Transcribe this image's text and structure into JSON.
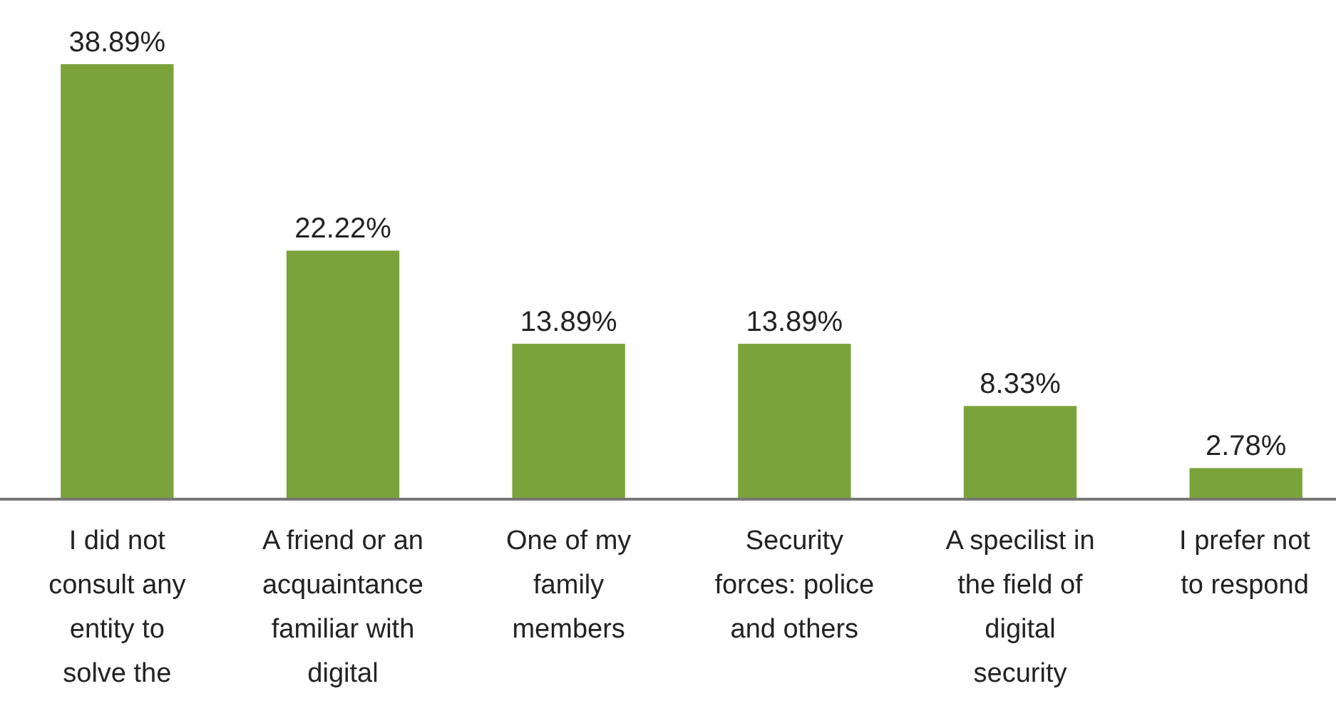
{
  "chart_data": {
    "type": "bar",
    "categories": [
      "I did not\nconsult any\nentity to\nsolve the",
      "A friend or an\nacquaintance\nfamiliar with\ndigital",
      "One of my\nfamily\nmembers",
      "Security\nforces: police\nand others",
      "A specilist in\nthe field of\ndigital\nsecurity",
      "I prefer not\nto respond"
    ],
    "values": [
      38.89,
      22.22,
      13.89,
      13.89,
      8.33,
      2.78
    ],
    "value_labels": [
      "38.89%",
      "22.22%",
      "13.89%",
      "13.89%",
      "8.33%",
      "2.78%"
    ],
    "color": "#7ba33b"
  }
}
